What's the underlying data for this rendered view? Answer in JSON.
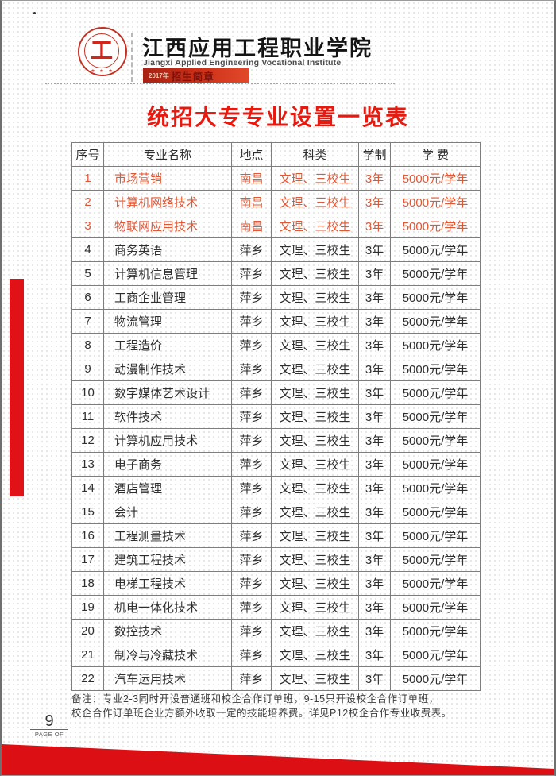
{
  "header": {
    "school_name_cn": "江西应用工程职业学院",
    "school_name_en": "Jiangxi Applied Engineering Vocational Institute",
    "banner_year": "2017年",
    "banner_title": "招生简章",
    "logo_glyph": "工",
    "logo_stars": "★ ★ ★"
  },
  "page_title": "统招大专专业设置一览表",
  "table": {
    "headers": [
      "序号",
      "专业名称",
      "地点",
      "科类",
      "学制",
      "学 费"
    ],
    "rows": [
      {
        "no": "1",
        "major": "市场营销",
        "location": "南昌",
        "category": "文理、三校生",
        "duration": "3年",
        "tuition": "5000元/学年",
        "highlight": true
      },
      {
        "no": "2",
        "major": "计算机网络技术",
        "location": "南昌",
        "category": "文理、三校生",
        "duration": "3年",
        "tuition": "5000元/学年",
        "highlight": true
      },
      {
        "no": "3",
        "major": "物联网应用技术",
        "location": "南昌",
        "category": "文理、三校生",
        "duration": "3年",
        "tuition": "5000元/学年",
        "highlight": true
      },
      {
        "no": "4",
        "major": "商务英语",
        "location": "萍乡",
        "category": "文理、三校生",
        "duration": "3年",
        "tuition": "5000元/学年",
        "highlight": false
      },
      {
        "no": "5",
        "major": "计算机信息管理",
        "location": "萍乡",
        "category": "文理、三校生",
        "duration": "3年",
        "tuition": "5000元/学年",
        "highlight": false
      },
      {
        "no": "6",
        "major": "工商企业管理",
        "location": "萍乡",
        "category": "文理、三校生",
        "duration": "3年",
        "tuition": "5000元/学年",
        "highlight": false
      },
      {
        "no": "7",
        "major": "物流管理",
        "location": "萍乡",
        "category": "文理、三校生",
        "duration": "3年",
        "tuition": "5000元/学年",
        "highlight": false
      },
      {
        "no": "8",
        "major": "工程造价",
        "location": "萍乡",
        "category": "文理、三校生",
        "duration": "3年",
        "tuition": "5000元/学年",
        "highlight": false
      },
      {
        "no": "9",
        "major": "动漫制作技术",
        "location": "萍乡",
        "category": "文理、三校生",
        "duration": "3年",
        "tuition": "5000元/学年",
        "highlight": false
      },
      {
        "no": "10",
        "major": "数字媒体艺术设计",
        "location": "萍乡",
        "category": "文理、三校生",
        "duration": "3年",
        "tuition": "5000元/学年",
        "highlight": false
      },
      {
        "no": "11",
        "major": "软件技术",
        "location": "萍乡",
        "category": "文理、三校生",
        "duration": "3年",
        "tuition": "5000元/学年",
        "highlight": false
      },
      {
        "no": "12",
        "major": "计算机应用技术",
        "location": "萍乡",
        "category": "文理、三校生",
        "duration": "3年",
        "tuition": "5000元/学年",
        "highlight": false
      },
      {
        "no": "13",
        "major": "电子商务",
        "location": "萍乡",
        "category": "文理、三校生",
        "duration": "3年",
        "tuition": "5000元/学年",
        "highlight": false
      },
      {
        "no": "14",
        "major": "酒店管理",
        "location": "萍乡",
        "category": "文理、三校生",
        "duration": "3年",
        "tuition": "5000元/学年",
        "highlight": false
      },
      {
        "no": "15",
        "major": "会计",
        "location": "萍乡",
        "category": "文理、三校生",
        "duration": "3年",
        "tuition": "5000元/学年",
        "highlight": false
      },
      {
        "no": "16",
        "major": "工程测量技术",
        "location": "萍乡",
        "category": "文理、三校生",
        "duration": "3年",
        "tuition": "5000元/学年",
        "highlight": false
      },
      {
        "no": "17",
        "major": "建筑工程技术",
        "location": "萍乡",
        "category": "文理、三校生",
        "duration": "3年",
        "tuition": "5000元/学年",
        "highlight": false
      },
      {
        "no": "18",
        "major": "电梯工程技术",
        "location": "萍乡",
        "category": "文理、三校生",
        "duration": "3年",
        "tuition": "5000元/学年",
        "highlight": false
      },
      {
        "no": "19",
        "major": "机电一体化技术",
        "location": "萍乡",
        "category": "文理、三校生",
        "duration": "3年",
        "tuition": "5000元/学年",
        "highlight": false
      },
      {
        "no": "20",
        "major": "数控技术",
        "location": "萍乡",
        "category": "文理、三校生",
        "duration": "3年",
        "tuition": "5000元/学年",
        "highlight": false
      },
      {
        "no": "21",
        "major": "制冷与冷藏技术",
        "location": "萍乡",
        "category": "文理、三校生",
        "duration": "3年",
        "tuition": "5000元/学年",
        "highlight": false
      },
      {
        "no": "22",
        "major": "汽车运用技术",
        "location": "萍乡",
        "category": "文理、三校生",
        "duration": "3年",
        "tuition": "5000元/学年",
        "highlight": false
      }
    ]
  },
  "note": {
    "line1": "备注：专业2-3同时开设普通班和校企合作订单班，9-15只开设校企合作订单班，",
    "line2": "校企合作订单班企业方额外收取一定的技能培养费。详见P12校企合作专业收费表。"
  },
  "footer": {
    "page_number": "9",
    "page_label": "PAGE OF"
  },
  "colors": {
    "title_red": "#e8190f",
    "highlight_orange": "#e05836",
    "banner_red_dark": "#a92113",
    "banner_red_light": "#e2492a",
    "decor_red": "#dc0f14",
    "table_border_gray": "#7e7e7e"
  }
}
